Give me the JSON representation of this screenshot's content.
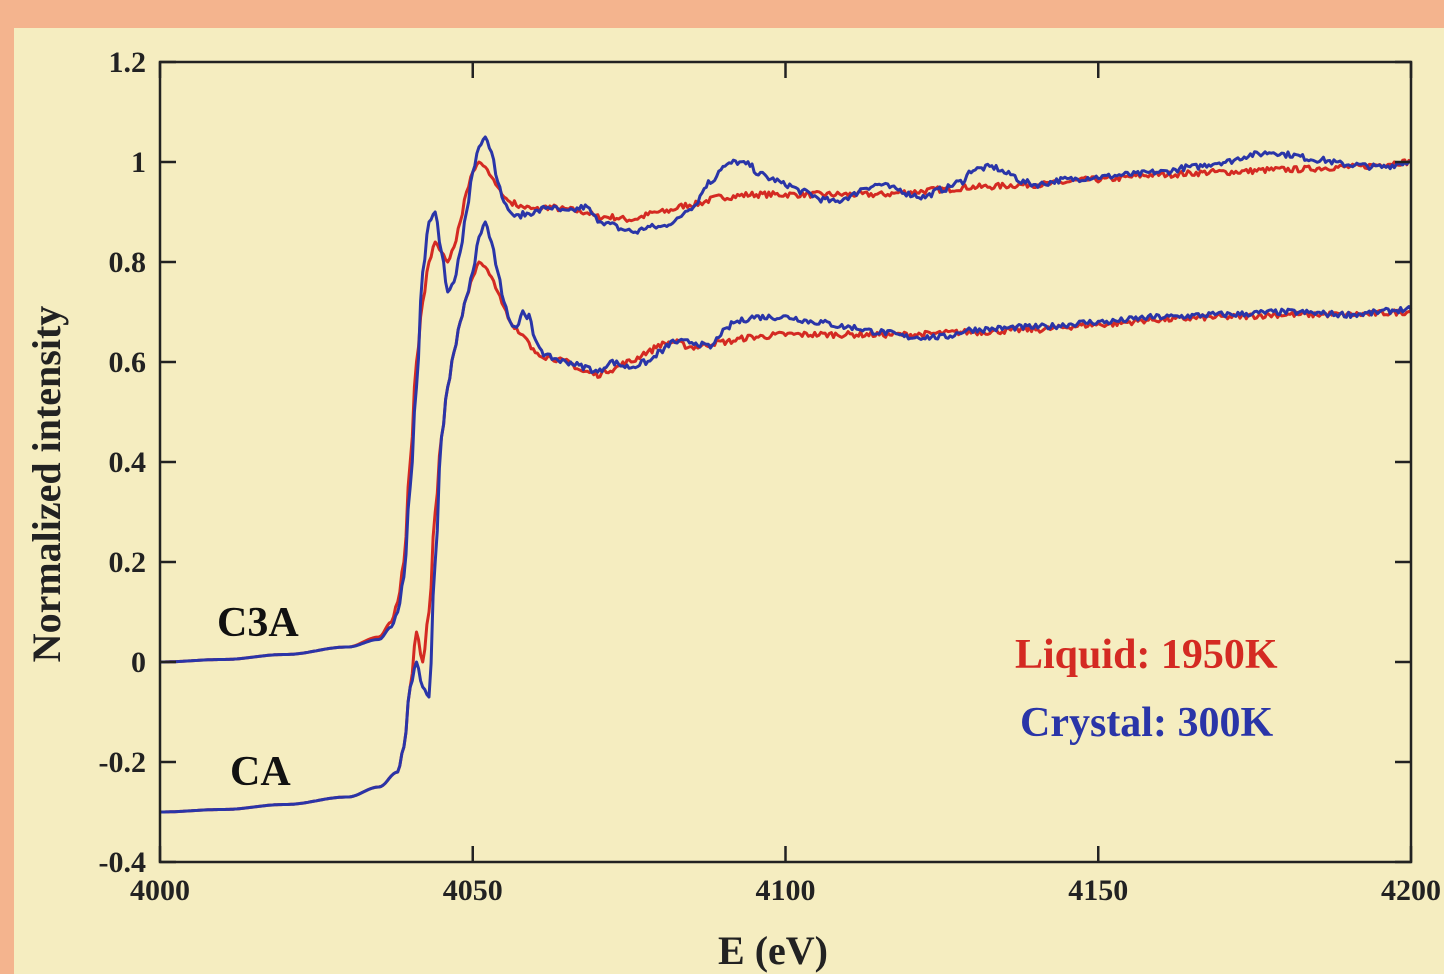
{
  "chart_data": {
    "type": "line",
    "title": "",
    "xlabel": "E (eV)",
    "ylabel": "Normalized intensity",
    "xlim": [
      4000,
      4200
    ],
    "ylim": [
      -0.4,
      1.2
    ],
    "xticks": [
      4000,
      4050,
      4100,
      4150,
      4200
    ],
    "xtick_labels": [
      "4000",
      "4050",
      "4100",
      "4150",
      "4200"
    ],
    "yticks": [
      -0.4,
      -0.2,
      0,
      0.2,
      0.4,
      0.6,
      0.8,
      1,
      1.2
    ],
    "ytick_labels": [
      "-0.4",
      "-0.2",
      "0",
      "0.2",
      "0.4",
      "0.6",
      "0.8",
      "1",
      "1.2"
    ],
    "grid": false,
    "legend_position": "bottom-right",
    "legend": [
      {
        "label": "Liquid: 1950K",
        "color": "#d42a22"
      },
      {
        "label": "Crystal: 300K",
        "color": "#2a35a8"
      }
    ],
    "annotations": [
      {
        "text": "C3A",
        "x": 4017,
        "y": 0.07
      },
      {
        "text": "CA",
        "x": 4017,
        "y": -0.15
      }
    ],
    "series": [
      {
        "name": "C3A Liquid: 1950K",
        "color": "#d42a22",
        "x": [
          4000,
          4010,
          4020,
          4030,
          4035,
          4037,
          4038,
          4039,
          4040,
          4041,
          4042,
          4043,
          4044,
          4045,
          4046,
          4047,
          4048,
          4049,
          4050,
          4051,
          4052,
          4053,
          4054,
          4055,
          4056,
          4058,
          4060,
          4062,
          4065,
          4068,
          4070,
          4072,
          4075,
          4080,
          4085,
          4090,
          4095,
          4100,
          4105,
          4110,
          4115,
          4120,
          4125,
          4130,
          4140,
          4150,
          4160,
          4170,
          4180,
          4190,
          4200
        ],
        "y": [
          0.0,
          0.005,
          0.015,
          0.03,
          0.05,
          0.08,
          0.12,
          0.2,
          0.4,
          0.6,
          0.72,
          0.8,
          0.84,
          0.82,
          0.8,
          0.83,
          0.88,
          0.94,
          0.98,
          1.0,
          0.99,
          0.97,
          0.95,
          0.93,
          0.92,
          0.91,
          0.905,
          0.91,
          0.905,
          0.9,
          0.89,
          0.89,
          0.885,
          0.9,
          0.915,
          0.93,
          0.935,
          0.935,
          0.935,
          0.935,
          0.935,
          0.94,
          0.945,
          0.95,
          0.955,
          0.965,
          0.975,
          0.98,
          0.985,
          0.99,
          1.0
        ]
      },
      {
        "name": "C3A Crystal: 300K",
        "color": "#2a35a8",
        "x": [
          4000,
          4010,
          4020,
          4030,
          4035,
          4037,
          4038,
          4039,
          4040,
          4041,
          4042,
          4043,
          4044,
          4045,
          4046,
          4047,
          4048,
          4049,
          4050,
          4051,
          4052,
          4053,
          4054,
          4055,
          4056,
          4057,
          4058,
          4060,
          4062,
          4065,
          4068,
          4070,
          4072,
          4074,
          4076,
          4078,
          4080,
          4082,
          4085,
          4088,
          4090,
          4092,
          4094,
          4096,
          4098,
          4100,
          4103,
          4106,
          4108,
          4110,
          4113,
          4115,
          4118,
          4120,
          4122,
          4125,
          4128,
          4130,
          4133,
          4136,
          4138,
          4140,
          4145,
          4150,
          4155,
          4160,
          4165,
          4170,
          4175,
          4178,
          4180,
          4185,
          4190,
          4195,
          4200
        ],
        "y": [
          0.0,
          0.005,
          0.015,
          0.03,
          0.045,
          0.07,
          0.1,
          0.17,
          0.35,
          0.55,
          0.78,
          0.88,
          0.9,
          0.82,
          0.74,
          0.76,
          0.82,
          0.9,
          0.98,
          1.03,
          1.05,
          1.02,
          0.96,
          0.92,
          0.9,
          0.89,
          0.895,
          0.9,
          0.91,
          0.9,
          0.91,
          0.885,
          0.875,
          0.865,
          0.86,
          0.87,
          0.87,
          0.88,
          0.91,
          0.96,
          0.99,
          1.0,
          0.995,
          0.975,
          0.965,
          0.955,
          0.94,
          0.925,
          0.92,
          0.93,
          0.95,
          0.955,
          0.945,
          0.935,
          0.93,
          0.945,
          0.96,
          0.985,
          0.99,
          0.975,
          0.96,
          0.955,
          0.965,
          0.97,
          0.975,
          0.98,
          0.99,
          1.0,
          1.015,
          1.02,
          1.015,
          1.005,
          0.995,
          0.99,
          1.0
        ]
      },
      {
        "name": "CA Liquid: 1950K",
        "color": "#d42a22",
        "x": [
          4000,
          4010,
          4020,
          4030,
          4035,
          4038,
          4039,
          4040,
          4041,
          4042,
          4043,
          4044,
          4045,
          4046,
          4047,
          4048,
          4049,
          4050,
          4051,
          4052,
          4053,
          4054,
          4055,
          4056,
          4058,
          4060,
          4062,
          4065,
          4068,
          4070,
          4072,
          4075,
          4078,
          4080,
          4082,
          4085,
          4090,
          4095,
          4100,
          4110,
          4120,
          4130,
          4140,
          4150,
          4160,
          4170,
          4180,
          4190,
          4200
        ],
        "y": [
          -0.3,
          -0.295,
          -0.285,
          -0.27,
          -0.25,
          -0.22,
          -0.17,
          -0.05,
          0.06,
          0.0,
          0.1,
          0.3,
          0.45,
          0.55,
          0.62,
          0.68,
          0.73,
          0.77,
          0.8,
          0.79,
          0.77,
          0.74,
          0.71,
          0.68,
          0.65,
          0.62,
          0.61,
          0.6,
          0.58,
          0.575,
          0.585,
          0.6,
          0.62,
          0.635,
          0.64,
          0.63,
          0.64,
          0.65,
          0.655,
          0.655,
          0.655,
          0.66,
          0.665,
          0.675,
          0.685,
          0.69,
          0.695,
          0.695,
          0.7
        ]
      },
      {
        "name": "CA Crystal: 300K",
        "color": "#2a35a8",
        "x": [
          4000,
          4010,
          4020,
          4030,
          4035,
          4038,
          4039,
          4040,
          4041,
          4042,
          4043,
          4044,
          4045,
          4046,
          4047,
          4048,
          4049,
          4050,
          4051,
          4052,
          4053,
          4054,
          4055,
          4056,
          4057,
          4058,
          4059,
          4060,
          4062,
          4065,
          4068,
          4070,
          4072,
          4075,
          4078,
          4080,
          4082,
          4085,
          4088,
          4090,
          4092,
          4095,
          4100,
          4105,
          4110,
          4115,
          4120,
          4125,
          4130,
          4140,
          4150,
          4160,
          4170,
          4180,
          4190,
          4200
        ],
        "y": [
          -0.3,
          -0.295,
          -0.285,
          -0.27,
          -0.25,
          -0.22,
          -0.17,
          -0.05,
          0.0,
          -0.05,
          -0.07,
          0.2,
          0.45,
          0.55,
          0.62,
          0.68,
          0.73,
          0.78,
          0.85,
          0.88,
          0.84,
          0.78,
          0.72,
          0.68,
          0.67,
          0.7,
          0.69,
          0.64,
          0.61,
          0.6,
          0.59,
          0.58,
          0.6,
          0.59,
          0.6,
          0.62,
          0.64,
          0.64,
          0.63,
          0.66,
          0.68,
          0.69,
          0.69,
          0.68,
          0.67,
          0.66,
          0.65,
          0.65,
          0.665,
          0.67,
          0.68,
          0.69,
          0.695,
          0.7,
          0.695,
          0.705
        ]
      }
    ]
  }
}
